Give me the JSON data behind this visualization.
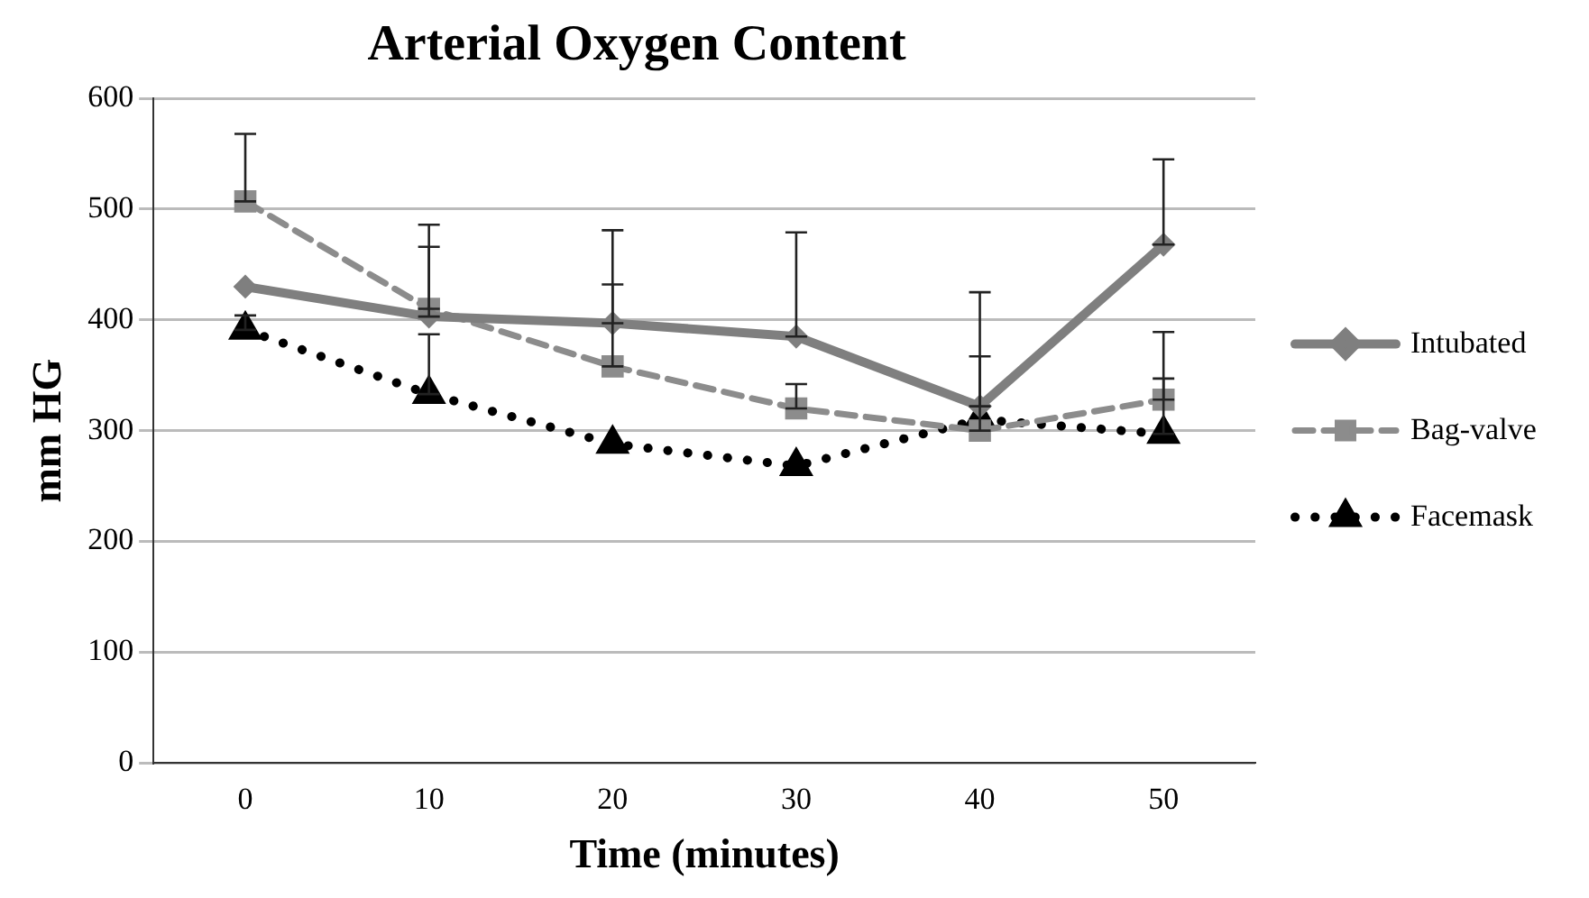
{
  "chart_data": {
    "type": "line",
    "title": "Arterial Oxygen Content",
    "xlabel": "Time (minutes)",
    "ylabel": "mm HG",
    "categories": [
      "0",
      "10",
      "20",
      "30",
      "40",
      "50"
    ],
    "series": [
      {
        "name": "Intubated",
        "color": "#7f7f7f",
        "marker": "diamond",
        "line_style": "solid",
        "values": [
          430,
          403,
          397,
          385,
          322,
          468
        ],
        "errors": [
          null,
          [
            403,
            486
          ],
          [
            397,
            481
          ],
          [
            385,
            479
          ],
          [
            322,
            425
          ],
          [
            468,
            545
          ]
        ]
      },
      {
        "name": "Bag-valve",
        "color": "#8c8c8c",
        "marker": "square",
        "line_style": "dashed",
        "values": [
          507,
          410,
          358,
          320,
          300,
          328
        ],
        "errors": [
          [
            507,
            568
          ],
          [
            410,
            466
          ],
          [
            358,
            432
          ],
          [
            320,
            342
          ],
          [
            300,
            367
          ],
          [
            328,
            389
          ]
        ]
      },
      {
        "name": "Facemask",
        "color": "#000000",
        "marker": "triangle",
        "line_style": "dotted",
        "values": [
          391,
          333,
          288,
          268,
          310,
          297
        ],
        "errors": [
          [
            391,
            404
          ],
          [
            333,
            387
          ],
          null,
          null,
          null,
          [
            297,
            347
          ]
        ]
      }
    ],
    "ylim": [
      0,
      600
    ],
    "yticks": [
      0,
      100,
      200,
      300,
      400,
      500,
      600
    ],
    "grid": "y",
    "legend": "right"
  }
}
